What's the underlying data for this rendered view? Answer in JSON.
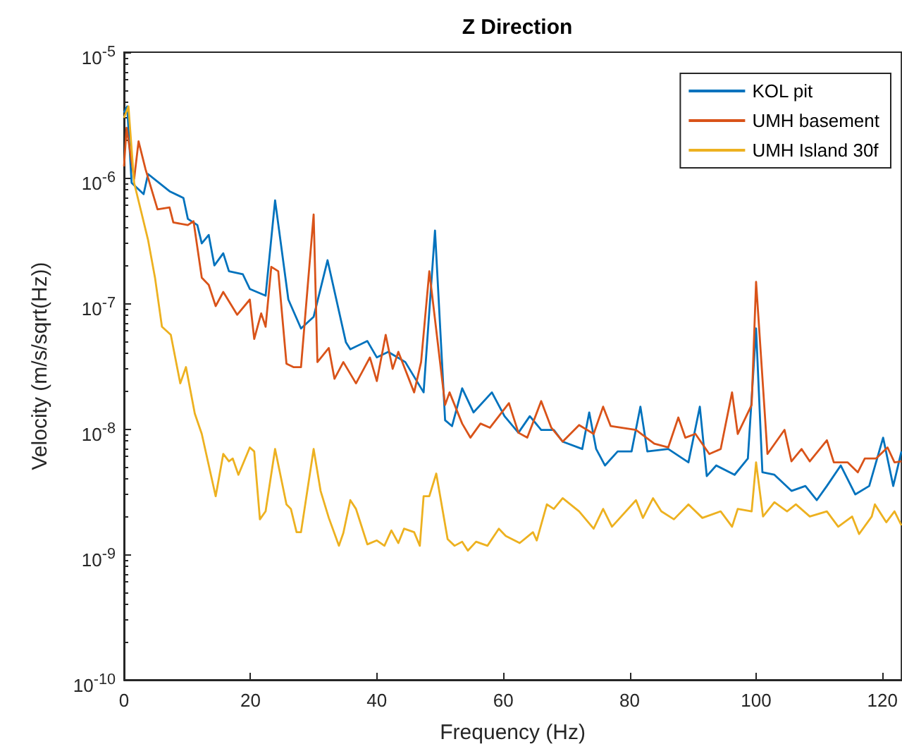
{
  "chart_data": {
    "type": "line",
    "title": "Z Direction",
    "xlabel": "Frequency (Hz)",
    "ylabel": "Velocity (m/s/sqrt(Hz))",
    "xlim": [
      0,
      123
    ],
    "xticks": [
      0,
      20,
      40,
      60,
      80,
      100,
      120
    ],
    "ylim": [
      1e-10,
      1e-05
    ],
    "yticks": [
      {
        "value": 1e-10,
        "label": "10$^{-10}$"
      },
      {
        "value": 1e-09,
        "label": "10$^{-9}$"
      },
      {
        "value": 1e-08,
        "label": "10$^{-8}$"
      },
      {
        "value": 1e-07,
        "label": "10$^{-7}$"
      },
      {
        "value": 1e-06,
        "label": "10$^{-6}$"
      },
      {
        "value": 1e-05,
        "label": "10$^{-5}$"
      }
    ],
    "log": "y",
    "grid": false,
    "legend": "top right",
    "marker": "none",
    "line_style": "solid",
    "series": [
      {
        "name": "KOL pit",
        "color": "#0072bd",
        "x": [
          0,
          0.5,
          1.2,
          3.1,
          3.8,
          7.2,
          9.4,
          10.1,
          11.6,
          12.3,
          13.4,
          14.3,
          15.7,
          16.6,
          18.8,
          19.9,
          22.4,
          23.9,
          26.0,
          28.0,
          30.0,
          32.2,
          35.1,
          35.8,
          38.5,
          40.0,
          41.8,
          44.5,
          47.4,
          49.2,
          50.8,
          51.9,
          53.5,
          55.3,
          58.2,
          60.2,
          62.4,
          64.2,
          66.0,
          68.0,
          69.4,
          72.5,
          73.6,
          74.7,
          76.1,
          78.1,
          80.3,
          81.7,
          82.8,
          86.1,
          89.3,
          91.1,
          92.2,
          93.7,
          96.6,
          98.7,
          100,
          101,
          102.9,
          105.6,
          107.8,
          109.6,
          111.2,
          113.4,
          115.7,
          117.9,
          120.1,
          121.7,
          123
        ],
        "values": [
          3.3e-06,
          3.7e-06,
          9.1e-07,
          7.4e-07,
          1.07e-06,
          7.8e-07,
          6.9e-07,
          4.7e-07,
          4.2e-07,
          3e-07,
          3.5e-07,
          2e-07,
          2.5e-07,
          1.8e-07,
          1.7e-07,
          1.3e-07,
          1.15e-07,
          6.6e-07,
          1.07e-07,
          6.3e-08,
          7.8e-08,
          2.2e-07,
          4.9e-08,
          4.3e-08,
          5e-08,
          3.7e-08,
          4.1e-08,
          3.4e-08,
          1.95e-08,
          3.8e-07,
          1.17e-08,
          1.05e-08,
          2.1e-08,
          1.35e-08,
          1.95e-08,
          1.26e-08,
          9.3e-09,
          1.26e-08,
          9.8e-09,
          9.8e-09,
          7.9e-09,
          6.9e-09,
          1.35e-08,
          6.9e-09,
          5.1e-09,
          6.6e-09,
          6.6e-09,
          1.5e-08,
          6.6e-09,
          6.9e-09,
          5.4e-09,
          1.5e-08,
          4.2e-09,
          5.1e-09,
          4.3e-09,
          5.8e-09,
          6.3e-08,
          4.5e-09,
          4.3e-09,
          3.2e-09,
          3.5e-09,
          2.7e-09,
          3.5e-09,
          5.1e-09,
          3e-09,
          3.5e-09,
          8.5e-09,
          3.5e-09,
          6.6e-09
        ]
      },
      {
        "name": "UMH basement",
        "color": "#d95319",
        "x": [
          0,
          0.4,
          1.6,
          2.3,
          3.4,
          5.3,
          7.2,
          7.8,
          10.1,
          11,
          12.3,
          13.4,
          14.5,
          15.7,
          17.9,
          19.9,
          20.6,
          21.7,
          22.4,
          23.3,
          24.4,
          25.7,
          26.8,
          28.0,
          30.0,
          30.6,
          32.4,
          33.3,
          34.7,
          36.7,
          38.9,
          40,
          41.4,
          42.5,
          43.4,
          45.9,
          47,
          48.3,
          50.8,
          51.5,
          53.5,
          54.8,
          56.4,
          57.9,
          60.9,
          62.4,
          63.8,
          66,
          67.6,
          69.4,
          72,
          74.3,
          75.8,
          77,
          81,
          83.9,
          86.1,
          87.7,
          88.8,
          90.4,
          92.6,
          94.4,
          96.2,
          97.1,
          99.3,
          100,
          101.8,
          104.5,
          105.6,
          107.2,
          108.5,
          111.2,
          112.3,
          114.5,
          116.1,
          117.2,
          119,
          120.8,
          121.9,
          123
        ],
        "values": [
          1.23e-06,
          2.5e-06,
          9.8e-07,
          1.95e-06,
          1.17e-06,
          5.6e-07,
          5.8e-07,
          4.4e-07,
          4.2e-07,
          4.5e-07,
          1.6e-07,
          1.4e-07,
          9.5e-08,
          1.23e-07,
          8.1e-08,
          1.07e-07,
          5.2e-08,
          8.3e-08,
          6.5e-08,
          1.95e-07,
          1.8e-07,
          3.3e-08,
          3.1e-08,
          3.1e-08,
          5.1e-07,
          3.4e-08,
          4.4e-08,
          2.5e-08,
          3.4e-08,
          2.3e-08,
          3.7e-08,
          2.4e-08,
          5.6e-08,
          3e-08,
          4.1e-08,
          1.95e-08,
          3.4e-08,
          1.8e-07,
          1.55e-08,
          1.95e-08,
          1.1e-08,
          8.5e-09,
          1.1e-08,
          1.02e-08,
          1.6e-08,
          9.3e-09,
          8.5e-09,
          1.66e-08,
          1.02e-08,
          7.9e-09,
          1.07e-08,
          9.1e-09,
          1.5e-08,
          1.05e-08,
          9.8e-09,
          7.6e-09,
          7.1e-09,
          1.23e-08,
          8.5e-09,
          9.1e-09,
          6.3e-09,
          6.9e-09,
          1.95e-08,
          9.1e-09,
          1.55e-08,
          1.48e-07,
          6.3e-09,
          9.8e-09,
          5.5e-09,
          6.9e-09,
          5.5e-09,
          8.1e-09,
          5.4e-09,
          5.4e-09,
          4.5e-09,
          5.8e-09,
          5.8e-09,
          7.1e-09,
          5.4e-09,
          5.5e-09
        ]
      },
      {
        "name": "UMH Island 30f",
        "color": "#edb120",
        "x": [
          0,
          0.7,
          1.6,
          2.7,
          3.8,
          4.9,
          6,
          7.4,
          8.9,
          9.8,
          11.2,
          12.3,
          14.5,
          15.7,
          16.6,
          17.2,
          18.1,
          19.9,
          20.6,
          21.5,
          22.4,
          23.9,
          25.7,
          26.4,
          27.3,
          28,
          30,
          31.1,
          32.4,
          34,
          34.7,
          35.8,
          36.7,
          38.5,
          40,
          41.2,
          42.3,
          43.4,
          44.3,
          45.9,
          46.8,
          47.4,
          48.3,
          49.4,
          51.2,
          52.3,
          53.5,
          54.4,
          55.7,
          57.5,
          59.3,
          60.4,
          62.6,
          64.7,
          65.3,
          66.9,
          68,
          69.4,
          72,
          74.3,
          75.8,
          77.2,
          81,
          82.1,
          83.7,
          85,
          87,
          89.3,
          91.5,
          94.4,
          96.2,
          97.1,
          99.3,
          100,
          101.1,
          102.9,
          104.9,
          106.3,
          108.5,
          111.2,
          113,
          115.2,
          116.3,
          118.3,
          118.8,
          120.6,
          121.9,
          123
        ],
        "values": [
          3e-06,
          3.7e-06,
          9.1e-07,
          5.4e-07,
          3.2e-07,
          1.6e-07,
          6.5e-08,
          5.6e-08,
          2.3e-08,
          3.1e-08,
          1.32e-08,
          9.1e-09,
          2.9e-09,
          6.3e-09,
          5.5e-09,
          5.8e-09,
          4.3e-09,
          7.1e-09,
          6.6e-09,
          1.9e-09,
          2.2e-09,
          6.9e-09,
          2.5e-09,
          2.3e-09,
          1.5e-09,
          1.5e-09,
          6.9e-09,
          3.2e-09,
          1.95e-09,
          1.17e-09,
          1.48e-09,
          2.7e-09,
          2.3e-09,
          1.2e-09,
          1.29e-09,
          1.17e-09,
          1.55e-09,
          1.23e-09,
          1.6e-09,
          1.5e-09,
          1.17e-09,
          2.9e-09,
          2.9e-09,
          4.4e-09,
          1.32e-09,
          1.17e-09,
          1.26e-09,
          1.07e-09,
          1.26e-09,
          1.17e-09,
          1.6e-09,
          1.4e-09,
          1.23e-09,
          1.5e-09,
          1.29e-09,
          2.5e-09,
          2.3e-09,
          2.8e-09,
          2.2e-09,
          1.6e-09,
          2.3e-09,
          1.66e-09,
          2.7e-09,
          1.95e-09,
          2.8e-09,
          2.2e-09,
          1.9e-09,
          2.5e-09,
          1.95e-09,
          2.2e-09,
          1.66e-09,
          2.3e-09,
          2.2e-09,
          5.4e-09,
          2e-09,
          2.6e-09,
          2.2e-09,
          2.5e-09,
          2e-09,
          2.2e-09,
          1.66e-09,
          2e-09,
          1.45e-09,
          2e-09,
          2.5e-09,
          1.8e-09,
          2.2e-09,
          1.7e-09
        ]
      }
    ]
  }
}
